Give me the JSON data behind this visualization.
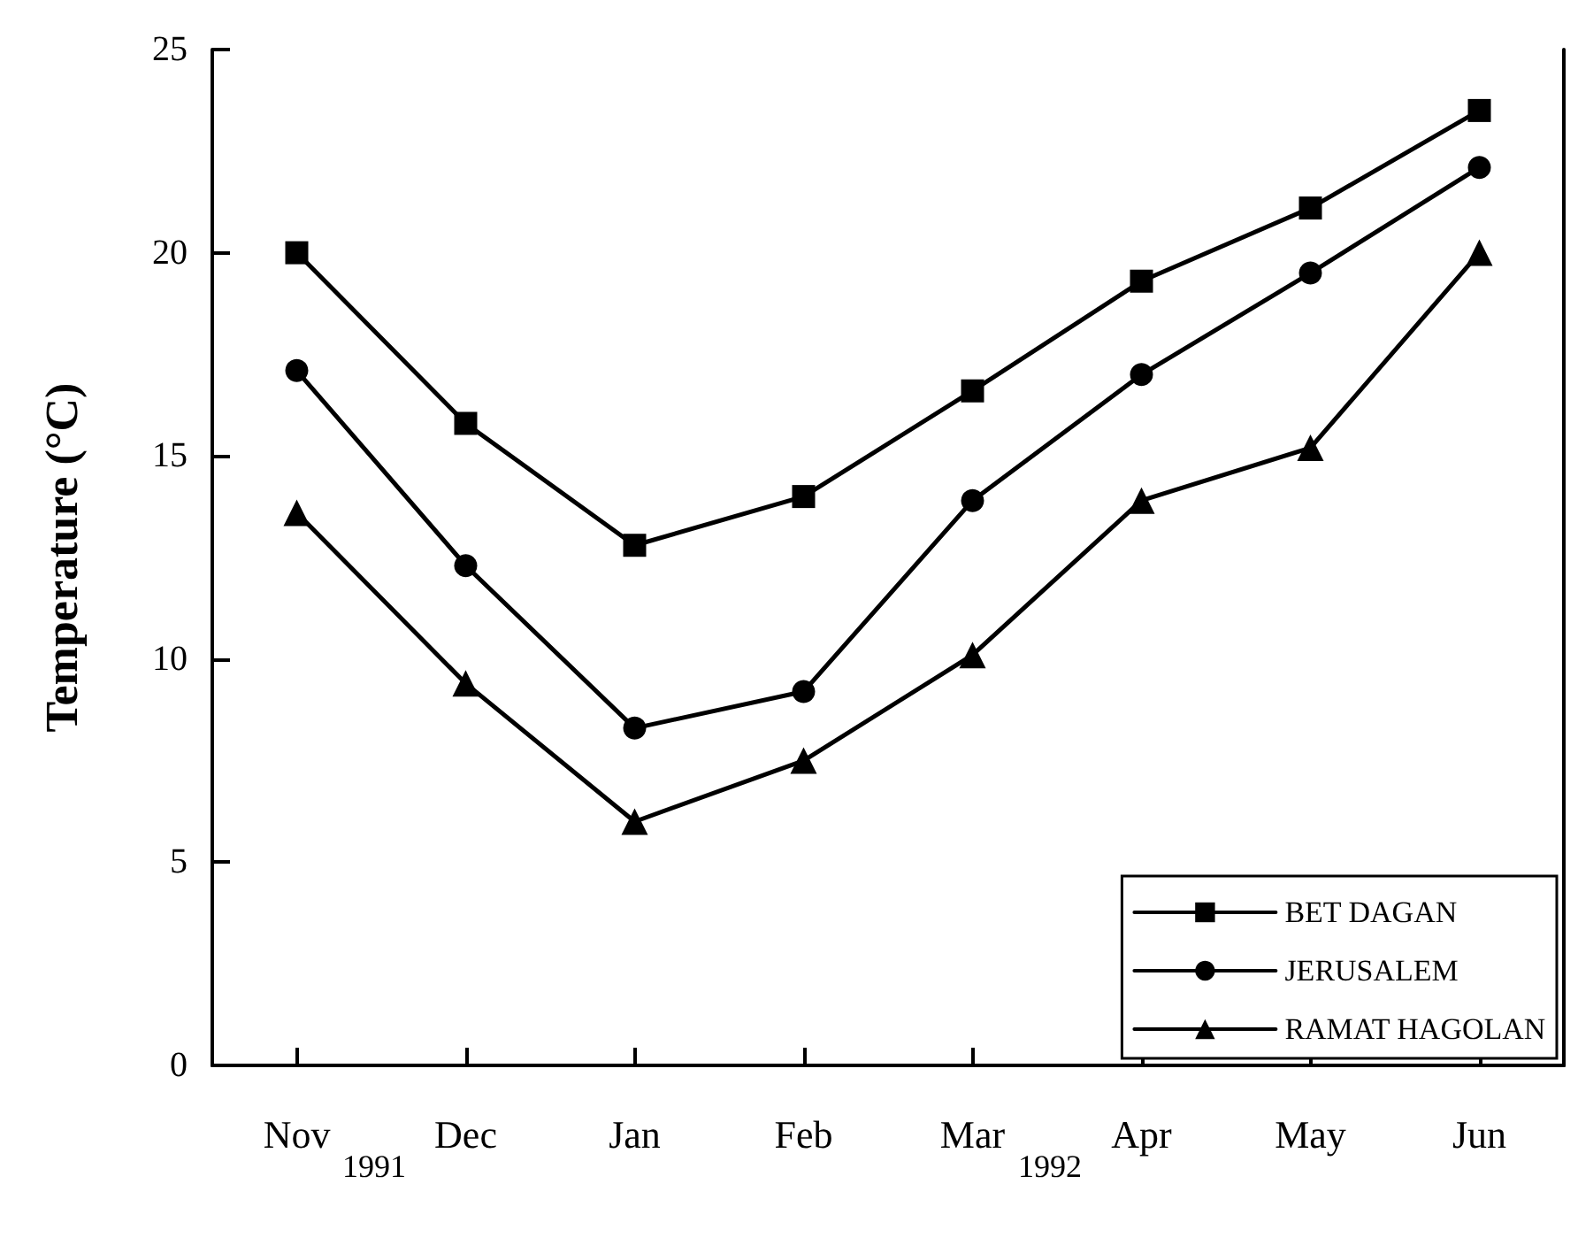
{
  "chart_data": {
    "type": "line",
    "ylabel": "Temperature (°C)",
    "categories": [
      "Nov",
      "Dec",
      "Jan",
      "Feb",
      "Mar",
      "Apr",
      "May",
      "Jun"
    ],
    "series": [
      {
        "name": "BET DAGAN",
        "color": "#000000",
        "marker": "square",
        "values": [
          20.0,
          15.8,
          12.8,
          14.0,
          16.6,
          19.3,
          21.1,
          23.5
        ]
      },
      {
        "name": "JERUSALEM",
        "color": "#000000",
        "marker": "circle",
        "values": [
          17.1,
          12.3,
          8.3,
          9.2,
          13.9,
          17.0,
          19.5,
          22.1
        ]
      },
      {
        "name": "RAMAT HAGOLAN",
        "color": "#000000",
        "marker": "triangle",
        "values": [
          13.6,
          9.4,
          6.0,
          7.5,
          10.1,
          13.9,
          15.2,
          20.0
        ]
      }
    ],
    "ylim": [
      0,
      25
    ],
    "yticks": [
      0,
      5,
      10,
      15,
      20,
      25
    ],
    "annotations": [
      "1991",
      "1992"
    ],
    "grid": false,
    "legend": "bottom right",
    "line_style": "solid"
  }
}
